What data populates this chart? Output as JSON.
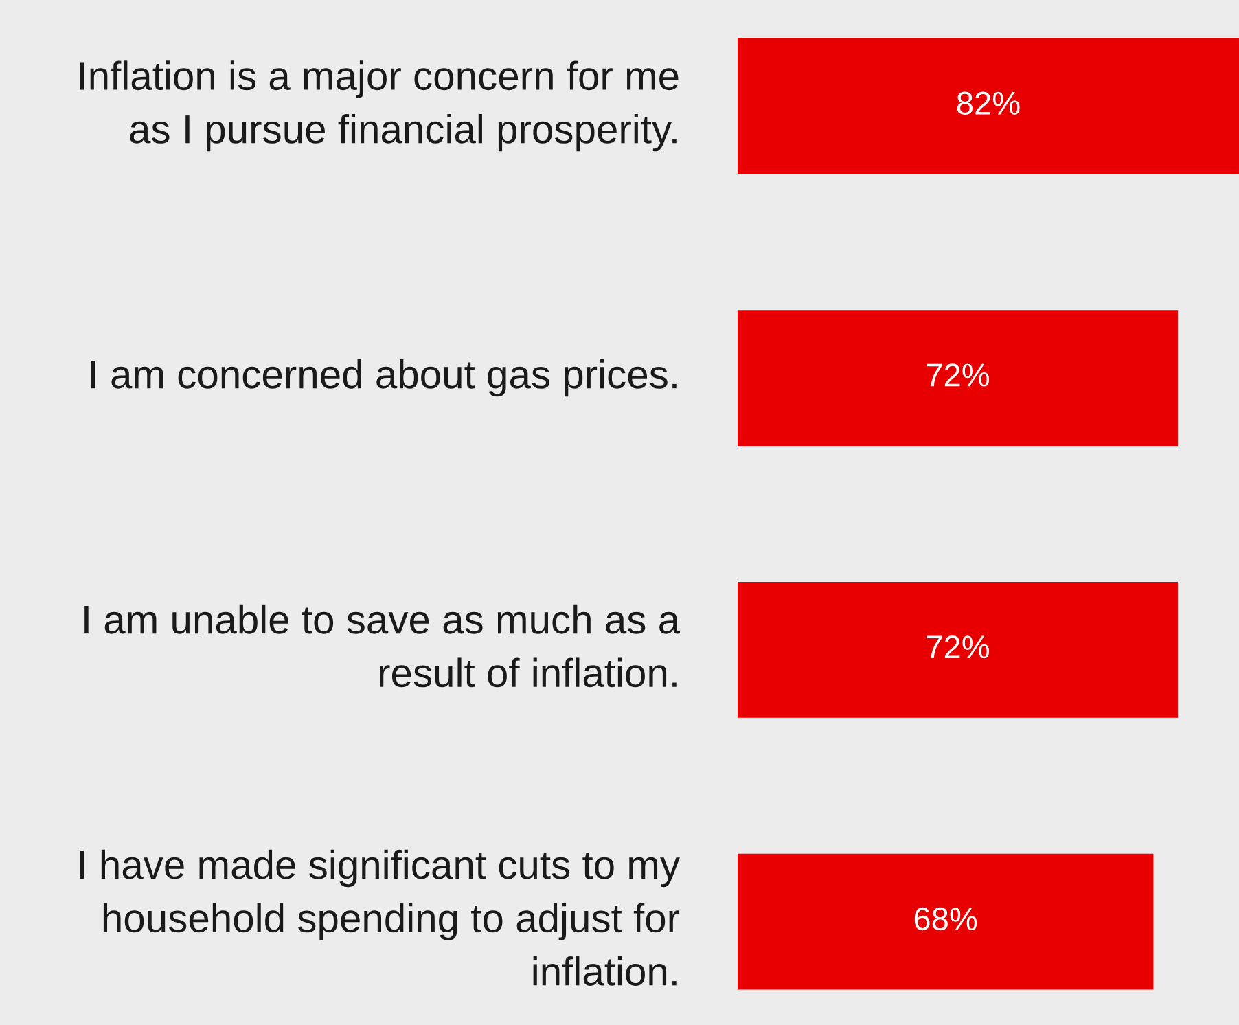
{
  "chart_data": {
    "type": "bar",
    "orientation": "horizontal",
    "categories": [
      "Inflation is a major concern for me as I pursue financial prosperity.",
      "I am concerned about gas prices.",
      "I am unable to save as much as a result of inflation.",
      "I have made significant cuts to my household spending to adjust for inflation."
    ],
    "values": [
      82,
      72,
      72,
      68
    ],
    "value_labels": [
      "82%",
      "72%",
      "72%",
      "68%"
    ],
    "color": "#e80000"
  }
}
